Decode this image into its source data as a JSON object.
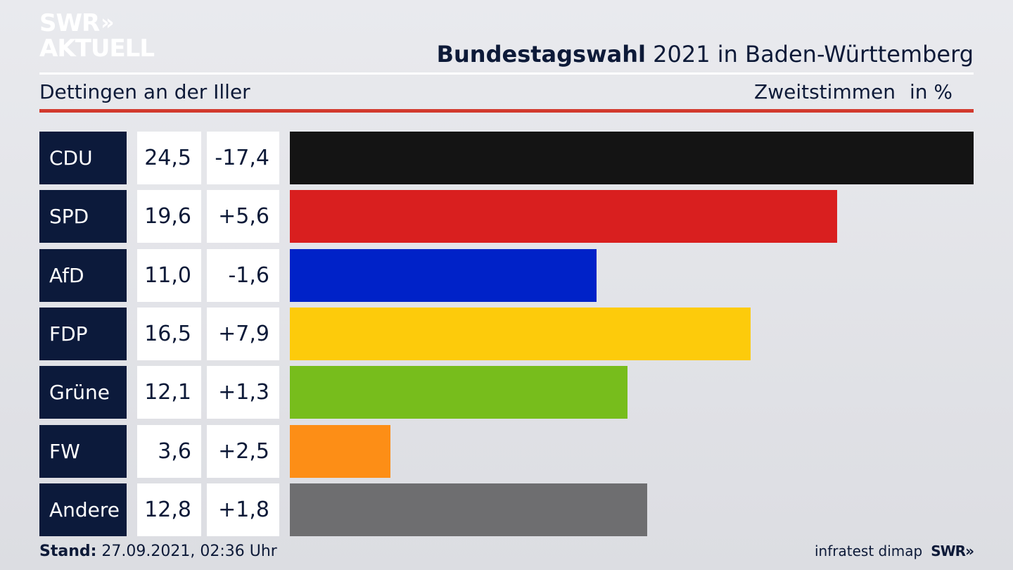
{
  "header": {
    "logo_line1": "SWR",
    "logo_chevrons": "»",
    "logo_line2": "AKTUELL",
    "title_bold": "Bundestagswahl",
    "title_rest": " 2021 in Baden-Württemberg",
    "region": "Dettingen an der Iller",
    "measure": "Zweitstimmen",
    "unit": "in %"
  },
  "colors": {
    "accent_red": "#d23a2e",
    "party_box": "#0c1a3b"
  },
  "chart_data": {
    "type": "bar",
    "orientation": "horizontal",
    "categories": [
      "CDU",
      "SPD",
      "AfD",
      "FDP",
      "Grüne",
      "FW",
      "Andere"
    ],
    "values": [
      24.5,
      19.6,
      11.0,
      16.5,
      12.1,
      3.6,
      12.8
    ],
    "values_label": [
      "24,5",
      "19,6",
      "11,0",
      "16,5",
      "12,1",
      "3,6",
      "12,8"
    ],
    "diff": [
      -17.4,
      5.6,
      -1.6,
      7.9,
      1.3,
      2.5,
      1.8
    ],
    "diff_label": [
      "-17,4",
      "+5,6",
      "-1,6",
      "+7,9",
      "+1,3",
      "+2,5",
      "+1,8"
    ],
    "colors": [
      "#141414",
      "#d91f1f",
      "#0022c8",
      "#fdcb0b",
      "#77bd1c",
      "#fd8e16",
      "#6e6e70"
    ],
    "xlim": [
      0,
      24.5
    ],
    "grid": false,
    "legend": "none"
  },
  "footer": {
    "stand_label": "Stand:",
    "stand_value": " 27.09.2021, 02:36 Uhr",
    "source": "infratest dimap",
    "brand": "SWR",
    "brand_chevrons": "»"
  }
}
